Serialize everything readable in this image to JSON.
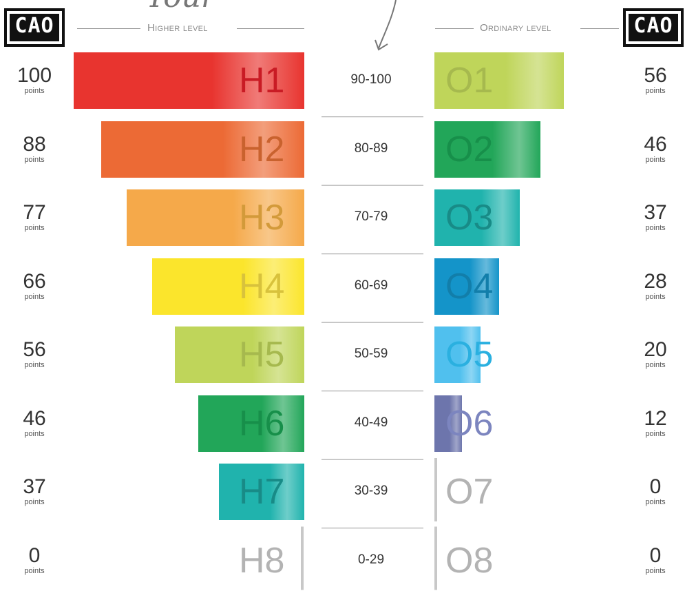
{
  "header": {
    "left_logo": "CAO",
    "right_logo": "CAO",
    "higher_label": "Higher level",
    "ordinary_label": "Ordinary level",
    "top_partial_text": "Your"
  },
  "chart_data": {
    "type": "bar",
    "title": "",
    "bands": [
      "90-100",
      "80-89",
      "70-79",
      "60-69",
      "50-59",
      "40-49",
      "30-39",
      "0-29"
    ],
    "points_label": "points",
    "series": [
      {
        "name": "Higher level",
        "grades": [
          "H1",
          "H2",
          "H3",
          "H4",
          "H5",
          "H6",
          "H7",
          "H8"
        ],
        "values": [
          100,
          88,
          77,
          66,
          56,
          46,
          37,
          0
        ]
      },
      {
        "name": "Ordinary level",
        "grades": [
          "O1",
          "O2",
          "O3",
          "O4",
          "O5",
          "O6",
          "O7",
          "O8"
        ],
        "values": [
          56,
          46,
          37,
          28,
          20,
          12,
          0,
          0
        ]
      }
    ],
    "ylim": [
      0,
      100
    ],
    "colors": {
      "higher": [
        "#e8342f",
        "#ec6a35",
        "#f5a94a",
        "#fbe52c",
        "#bfd55a",
        "#22a659",
        "#20b3ad",
        "#b8b8b8"
      ],
      "higher_text": [
        "#c91b24",
        "#c9622e",
        "#d39a3a",
        "#d8c23c",
        "#a6b94e",
        "#178f4a",
        "#188b87",
        "#b3b3b3"
      ],
      "ordinary": [
        "#bfd55a",
        "#22a659",
        "#20b3ad",
        "#1494c9",
        "#50c0ee",
        "#6d75ac",
        "#b8b8b8",
        "#b8b8b8"
      ],
      "ordinary_text": [
        "#a6b94e",
        "#178f4a",
        "#188b87",
        "#127eaa",
        "#2ab0e0",
        "#7c85bf",
        "#b3b3b3",
        "#b3b3b3"
      ]
    }
  }
}
